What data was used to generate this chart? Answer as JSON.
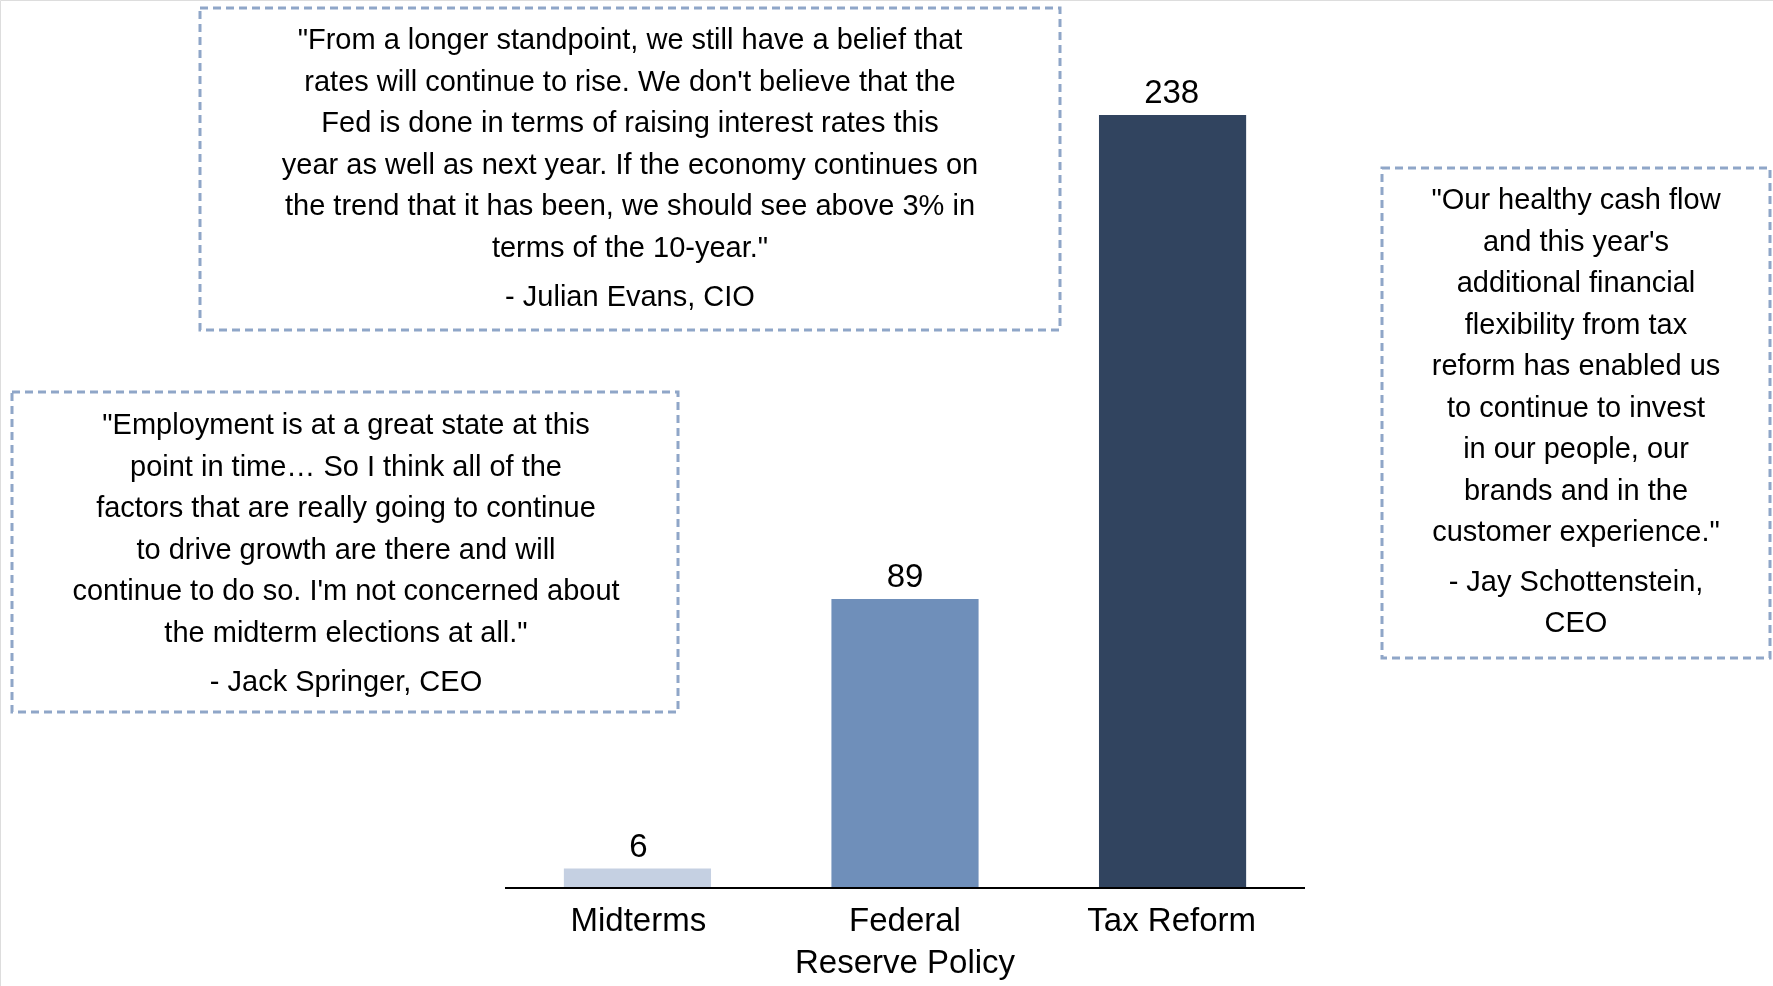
{
  "chart_data": {
    "type": "bar",
    "categories": [
      "Midterms",
      "Federal Reserve Policy",
      "Tax Reform"
    ],
    "values": [
      6,
      89,
      238
    ],
    "colors": [
      "#c5d0e2",
      "#6f8fba",
      "#31445f"
    ],
    "data_labels": true,
    "annotations": [
      "\"Employment is at a great state at this point in time… So I think all of the factors that are really going to continue to drive growth are there and will continue to do so. I'm not concerned about the midterm elections at all.\"",
      "- Jack Springer, CEO",
      "\"From a longer standpoint, we still have a belief that rates will continue to rise. We don't believe that the Fed is done in terms of raising interest rates this year as well as next year. If the economy continues on the trend that it has been, we should see above 3% in terms of the 10-year.\"",
      "- Julian Evans, CIO",
      "\"Our healthy cash flow and this year's additional financial flexibility from tax reform has enabled us to continue to invest in our people, our brands and in the customer experience.\"",
      "- Jay Schottenstein, CEO"
    ]
  }
}
